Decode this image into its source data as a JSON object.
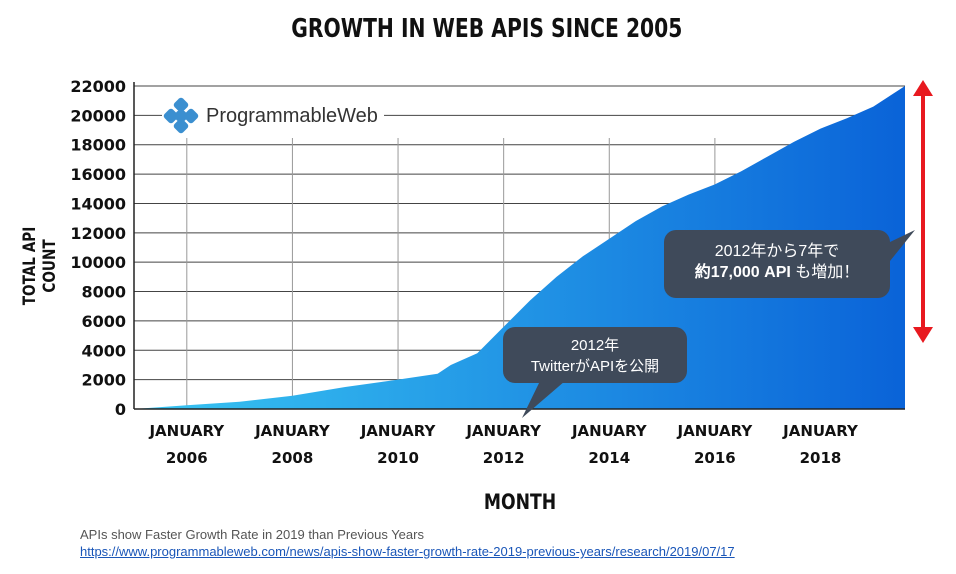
{
  "title": "GROWTH IN WEB APIS SINCE 2005",
  "logo_text": "ProgrammableWeb",
  "callout_2012": {
    "line1": "2012年",
    "line2": "TwitterがAPIを公開"
  },
  "callout_growth": {
    "line1": "2012年から7年で",
    "line2_prefix": "約",
    "line2_bold": "17,000 API",
    "line2_suffix": " も増加！"
  },
  "caption": "APIs show Faster Growth Rate in 2019 than Previous Years",
  "source_url": "https://www.programmableweb.com/news/apis-show-faster-growth-rate-2019-previous-years/research/2019/07/17",
  "colors": {
    "area_light": "#39c6f2",
    "area_dark": "#0a63d8",
    "arrow": "#e8191f",
    "bubble": "#3f4a5a"
  },
  "chart_data": {
    "type": "area",
    "title": "GROWTH IN WEB APIS SINCE 2005",
    "xlabel": "MONTH",
    "ylabel": "TOTAL API COUNT",
    "ylim": [
      0,
      22000
    ],
    "yticks": [
      0,
      2000,
      4000,
      6000,
      8000,
      10000,
      12000,
      14000,
      16000,
      18000,
      20000,
      22000
    ],
    "xlim": [
      2005.0,
      2019.6
    ],
    "xticks": [
      {
        "value": 2006,
        "line1": "JANUARY",
        "line2": "2006"
      },
      {
        "value": 2008,
        "line1": "JANUARY",
        "line2": "2008"
      },
      {
        "value": 2010,
        "line1": "JANUARY",
        "line2": "2010"
      },
      {
        "value": 2012,
        "line1": "JANUARY",
        "line2": "2012"
      },
      {
        "value": 2014,
        "line1": "JANUARY",
        "line2": "2014"
      },
      {
        "value": 2016,
        "line1": "JANUARY",
        "line2": "2016"
      },
      {
        "value": 2018,
        "line1": "JANUARY",
        "line2": "2018"
      }
    ],
    "grid": true,
    "series": [
      {
        "name": "Total API Count",
        "x": [
          2005.0,
          2006.0,
          2007.0,
          2008.0,
          2009.0,
          2010.0,
          2010.75,
          2011.0,
          2011.5,
          2012.0,
          2012.5,
          2013.0,
          2013.5,
          2014.0,
          2014.5,
          2015.0,
          2015.5,
          2016.0,
          2016.5,
          2017.0,
          2017.5,
          2018.0,
          2018.5,
          2019.0,
          2019.6
        ],
        "values": [
          0,
          250,
          500,
          900,
          1500,
          2000,
          2400,
          3000,
          3800,
          5600,
          7400,
          9000,
          10400,
          11600,
          12800,
          13800,
          14600,
          15300,
          16200,
          17200,
          18200,
          19100,
          19800,
          20600,
          22000
        ]
      }
    ],
    "annotation_arrow": {
      "from": 0,
      "to": 22000,
      "x": 2019.9
    }
  }
}
